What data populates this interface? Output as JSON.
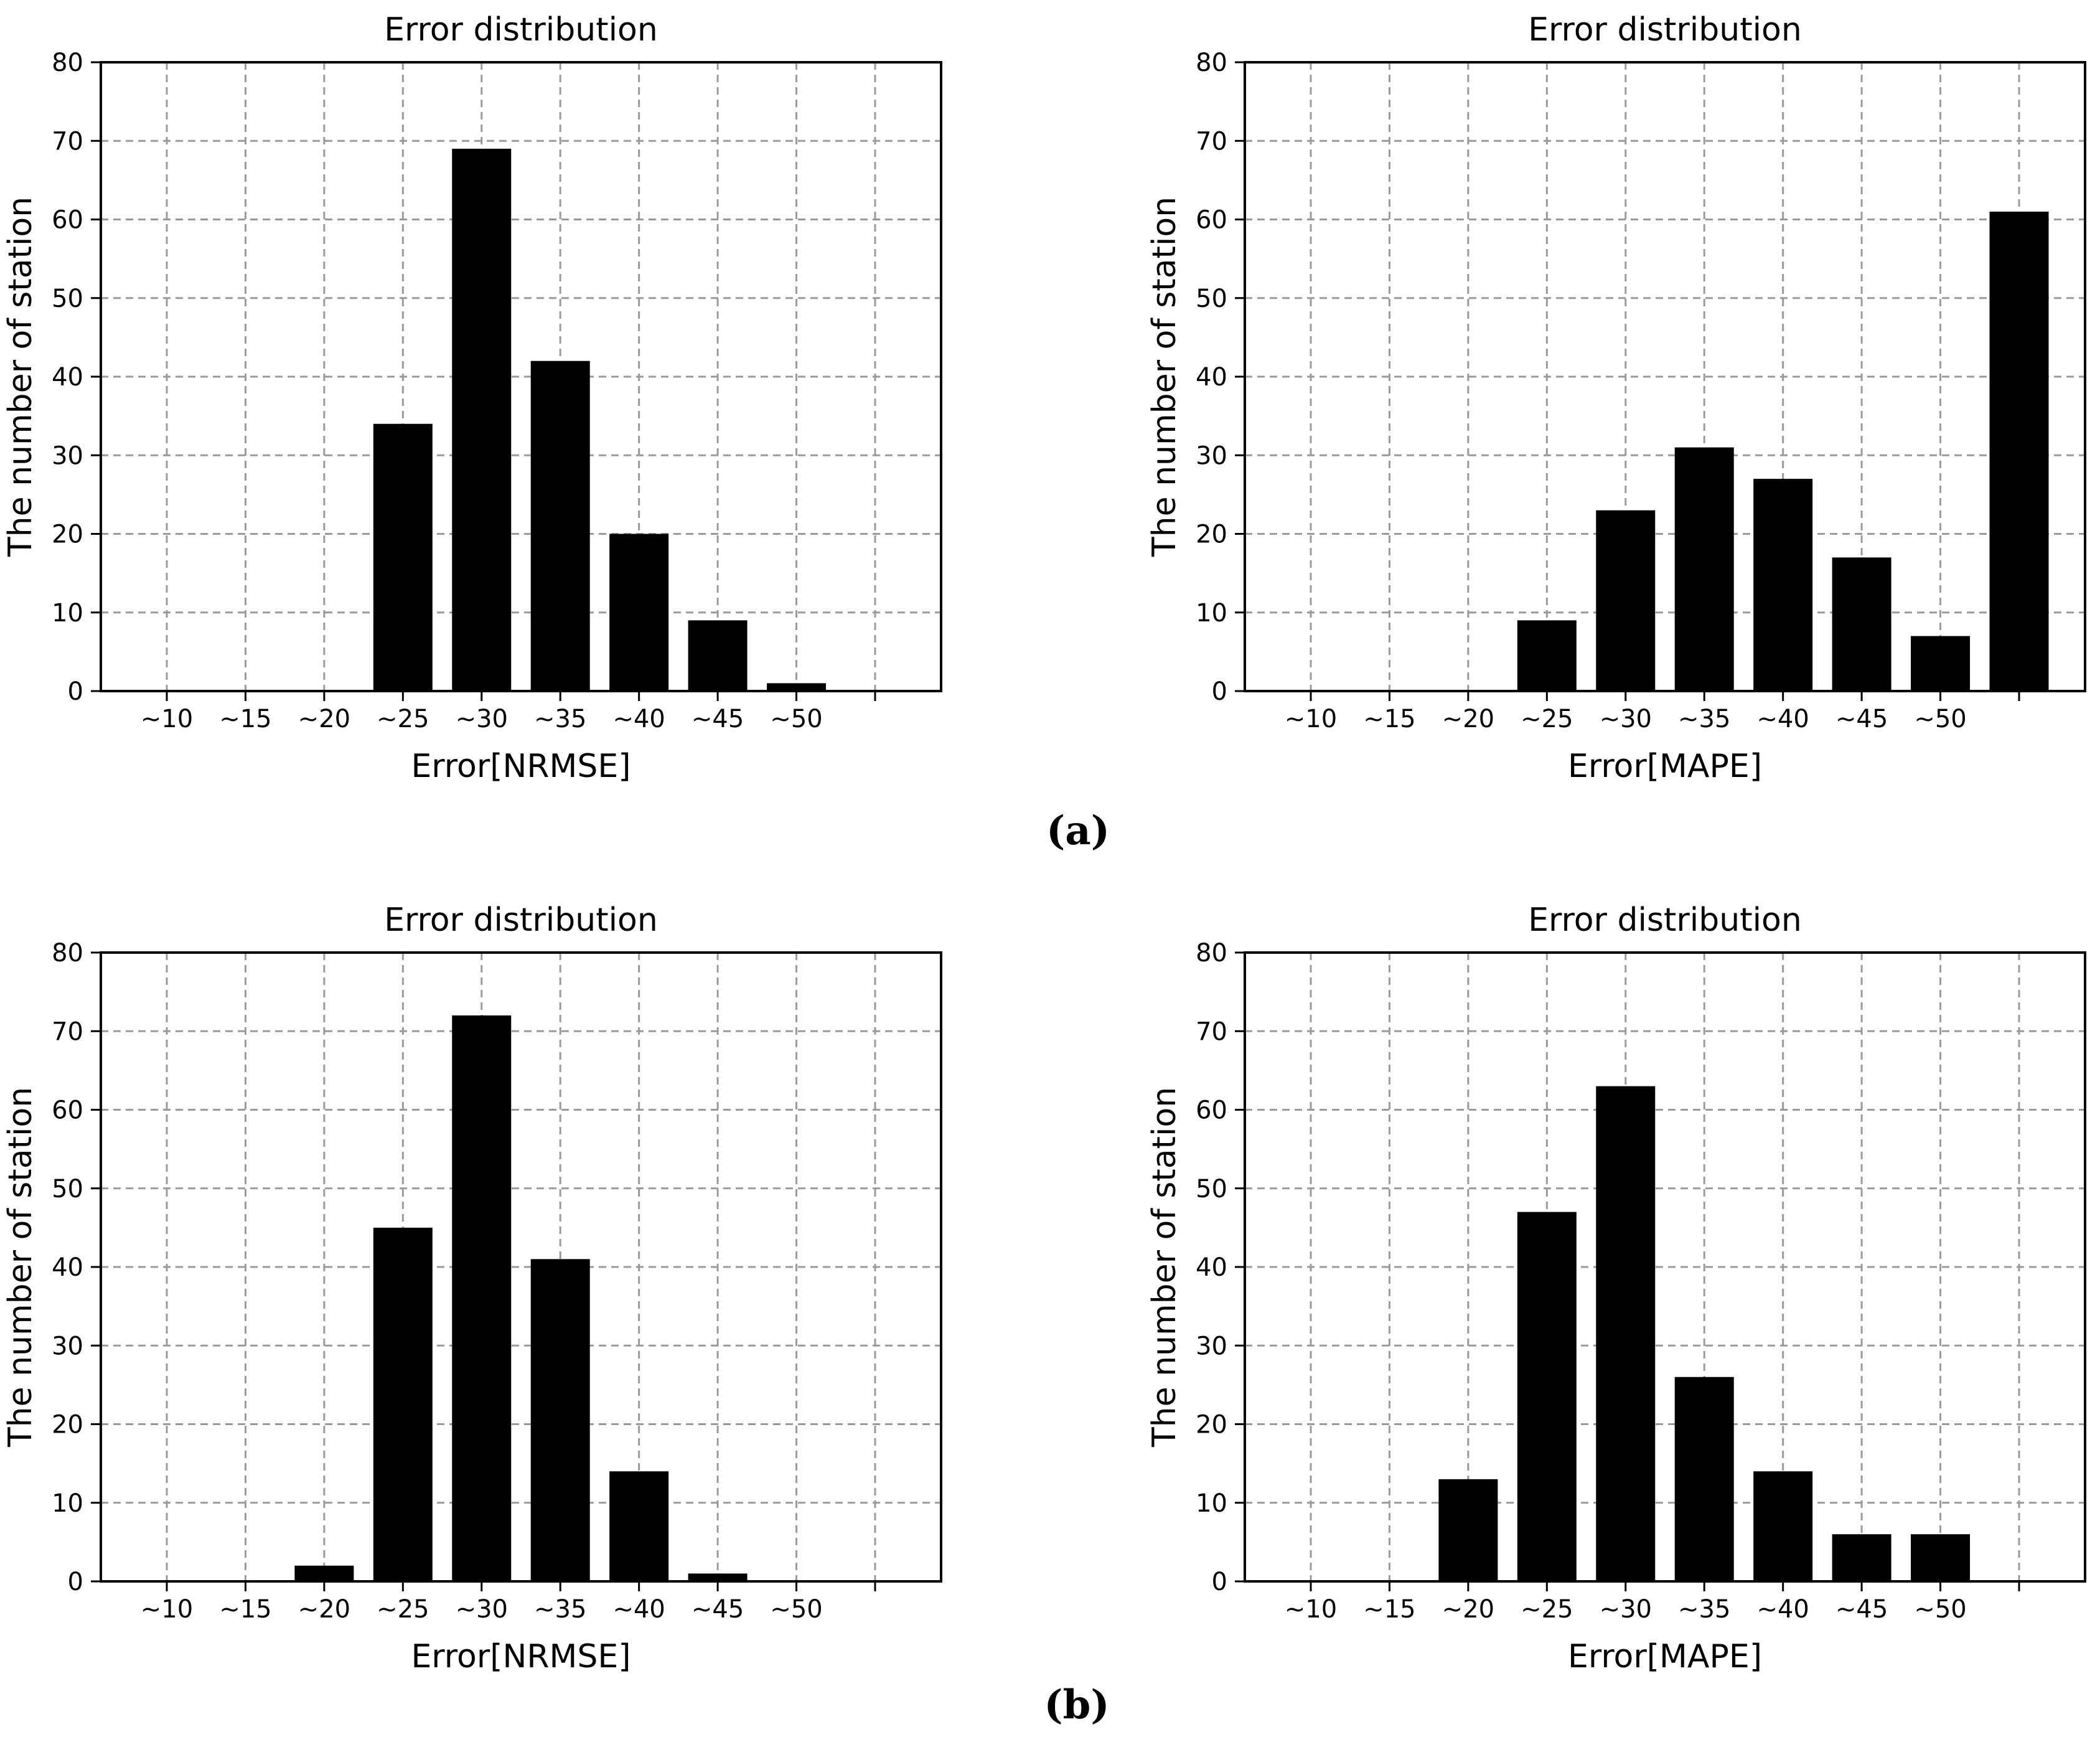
{
  "figure": {
    "panel_a_label": "(a)",
    "panel_b_label": "(b)"
  },
  "colors": {
    "background": "#ffffff",
    "bar": "#000000",
    "frame": "#000000",
    "grid": "#9a9a9a",
    "text": "#000000"
  },
  "chart_data": [
    {
      "id": "panel-a-nrmse",
      "type": "bar",
      "title": "Error distribution",
      "xlabel": "Error[NRMSE]",
      "ylabel": "The number of station",
      "categories": [
        "~10",
        "~15",
        "~20",
        "~25",
        "~30",
        "~35",
        "~40",
        "~45",
        "~50",
        ""
      ],
      "values": [
        0,
        0,
        0,
        34,
        69,
        42,
        20,
        9,
        1,
        0
      ],
      "ylim": [
        0,
        80
      ],
      "yticks": [
        0,
        10,
        20,
        30,
        40,
        50,
        60,
        70,
        80
      ],
      "grid": "dashed",
      "legend_position": "none"
    },
    {
      "id": "panel-a-mape",
      "type": "bar",
      "title": "Error distribution",
      "xlabel": "Error[MAPE]",
      "ylabel": "The number of station",
      "categories": [
        "~10",
        "~15",
        "~20",
        "~25",
        "~30",
        "~35",
        "~40",
        "~45",
        "~50",
        ""
      ],
      "values": [
        0,
        0,
        0,
        9,
        23,
        31,
        27,
        17,
        7,
        61
      ],
      "ylim": [
        0,
        80
      ],
      "yticks": [
        0,
        10,
        20,
        30,
        40,
        50,
        60,
        70,
        80
      ],
      "grid": "dashed",
      "legend_position": "none"
    },
    {
      "id": "panel-b-nrmse",
      "type": "bar",
      "title": "Error distribution",
      "xlabel": "Error[NRMSE]",
      "ylabel": "The number of station",
      "categories": [
        "~10",
        "~15",
        "~20",
        "~25",
        "~30",
        "~35",
        "~40",
        "~45",
        "~50",
        ""
      ],
      "values": [
        0,
        0,
        2,
        45,
        72,
        41,
        14,
        1,
        0,
        0
      ],
      "ylim": [
        0,
        80
      ],
      "yticks": [
        0,
        10,
        20,
        30,
        40,
        50,
        60,
        70,
        80
      ],
      "grid": "dashed",
      "legend_position": "none"
    },
    {
      "id": "panel-b-mape",
      "type": "bar",
      "title": "Error distribution",
      "xlabel": "Error[MAPE]",
      "ylabel": "The number of station",
      "categories": [
        "~10",
        "~15",
        "~20",
        "~25",
        "~30",
        "~35",
        "~40",
        "~45",
        "~50",
        ""
      ],
      "values": [
        0,
        0,
        13,
        47,
        63,
        26,
        14,
        6,
        6,
        0
      ],
      "ylim": [
        0,
        80
      ],
      "yticks": [
        0,
        10,
        20,
        30,
        40,
        50,
        60,
        70,
        80
      ],
      "grid": "dashed",
      "legend_position": "none"
    }
  ]
}
